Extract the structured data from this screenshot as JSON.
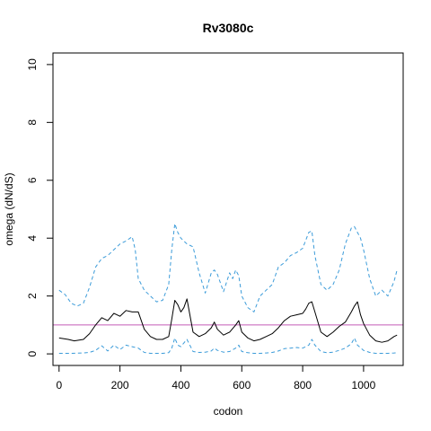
{
  "chart_data": {
    "type": "line",
    "title": "Rv3080c",
    "xlabel": "codon",
    "ylabel": "omega (dN/dS)",
    "xlim": [
      -20,
      1130
    ],
    "ylim": [
      -0.4,
      10.4
    ],
    "x_ticks": [
      0,
      200,
      400,
      600,
      800,
      1000
    ],
    "y_ticks": [
      0,
      2,
      4,
      6,
      8,
      10
    ],
    "reference_line": {
      "y": 1,
      "color": "#c45bb8"
    },
    "grid": false,
    "series": [
      {
        "role": "estimate",
        "color": "#000000",
        "dash": "solid",
        "x": [
          0,
          30,
          50,
          80,
          100,
          120,
          140,
          160,
          180,
          200,
          220,
          240,
          260,
          280,
          300,
          320,
          340,
          360,
          370,
          380,
          390,
          400,
          410,
          420,
          440,
          460,
          480,
          500,
          510,
          520,
          540,
          560,
          580,
          590,
          600,
          620,
          640,
          660,
          680,
          700,
          720,
          740,
          760,
          780,
          800,
          810,
          820,
          830,
          840,
          860,
          880,
          900,
          920,
          940,
          960,
          970,
          980,
          990,
          1000,
          1020,
          1040,
          1060,
          1080,
          1100,
          1110
        ],
        "y": [
          0.55,
          0.5,
          0.45,
          0.5,
          0.7,
          1.0,
          1.25,
          1.15,
          1.4,
          1.3,
          1.5,
          1.45,
          1.45,
          0.85,
          0.6,
          0.5,
          0.5,
          0.6,
          1.2,
          1.85,
          1.7,
          1.45,
          1.6,
          1.9,
          0.75,
          0.6,
          0.7,
          0.9,
          1.1,
          0.85,
          0.65,
          0.75,
          1.0,
          1.15,
          0.75,
          0.55,
          0.45,
          0.5,
          0.6,
          0.7,
          0.9,
          1.15,
          1.3,
          1.35,
          1.4,
          1.55,
          1.75,
          1.8,
          1.45,
          0.75,
          0.6,
          0.75,
          0.95,
          1.1,
          1.45,
          1.65,
          1.8,
          1.35,
          1.05,
          0.65,
          0.45,
          0.4,
          0.45,
          0.6,
          0.65
        ]
      },
      {
        "role": "upper",
        "color": "#3b9bd9",
        "dash": "dashed",
        "x": [
          0,
          20,
          40,
          60,
          80,
          100,
          120,
          140,
          160,
          180,
          200,
          220,
          240,
          250,
          260,
          280,
          300,
          320,
          340,
          360,
          370,
          380,
          390,
          400,
          420,
          440,
          460,
          480,
          500,
          510,
          520,
          540,
          560,
          570,
          580,
          590,
          600,
          620,
          640,
          660,
          680,
          700,
          720,
          740,
          760,
          780,
          800,
          820,
          830,
          840,
          860,
          880,
          900,
          920,
          940,
          960,
          970,
          980,
          990,
          1000,
          1020,
          1040,
          1060,
          1080,
          1100,
          1110
        ],
        "y": [
          2.2,
          2.05,
          1.75,
          1.65,
          1.75,
          2.3,
          3.0,
          3.3,
          3.4,
          3.6,
          3.8,
          3.9,
          4.05,
          3.6,
          2.6,
          2.2,
          2.0,
          1.8,
          1.85,
          2.4,
          3.6,
          4.5,
          4.2,
          4.0,
          3.8,
          3.7,
          2.8,
          2.1,
          2.8,
          2.9,
          2.75,
          2.15,
          2.8,
          2.6,
          2.9,
          2.7,
          2.0,
          1.6,
          1.45,
          2.0,
          2.2,
          2.4,
          3.0,
          3.15,
          3.4,
          3.5,
          3.65,
          4.2,
          4.25,
          3.4,
          2.4,
          2.2,
          2.4,
          2.9,
          3.8,
          4.35,
          4.4,
          4.2,
          4.0,
          3.6,
          2.6,
          2.0,
          2.2,
          2.0,
          2.5,
          2.9
        ]
      },
      {
        "role": "lower",
        "color": "#3b9bd9",
        "dash": "dashed",
        "x": [
          0,
          40,
          80,
          100,
          120,
          140,
          160,
          180,
          200,
          220,
          240,
          260,
          280,
          300,
          320,
          340,
          360,
          370,
          380,
          390,
          400,
          410,
          420,
          440,
          460,
          480,
          500,
          510,
          520,
          540,
          560,
          580,
          590,
          600,
          620,
          640,
          660,
          680,
          700,
          720,
          740,
          760,
          780,
          800,
          820,
          830,
          840,
          860,
          880,
          900,
          920,
          940,
          960,
          970,
          980,
          1000,
          1020,
          1040,
          1060,
          1080,
          1100,
          1110
        ],
        "y": [
          0.02,
          0.02,
          0.03,
          0.05,
          0.12,
          0.28,
          0.1,
          0.3,
          0.15,
          0.3,
          0.25,
          0.2,
          0.05,
          0.02,
          0.02,
          0.02,
          0.04,
          0.2,
          0.55,
          0.3,
          0.25,
          0.38,
          0.5,
          0.08,
          0.05,
          0.06,
          0.1,
          0.2,
          0.12,
          0.06,
          0.08,
          0.2,
          0.3,
          0.08,
          0.04,
          0.02,
          0.02,
          0.03,
          0.05,
          0.1,
          0.18,
          0.2,
          0.22,
          0.2,
          0.3,
          0.5,
          0.3,
          0.08,
          0.04,
          0.06,
          0.12,
          0.2,
          0.35,
          0.55,
          0.3,
          0.12,
          0.05,
          0.02,
          0.02,
          0.02,
          0.03,
          0.04
        ]
      }
    ]
  }
}
